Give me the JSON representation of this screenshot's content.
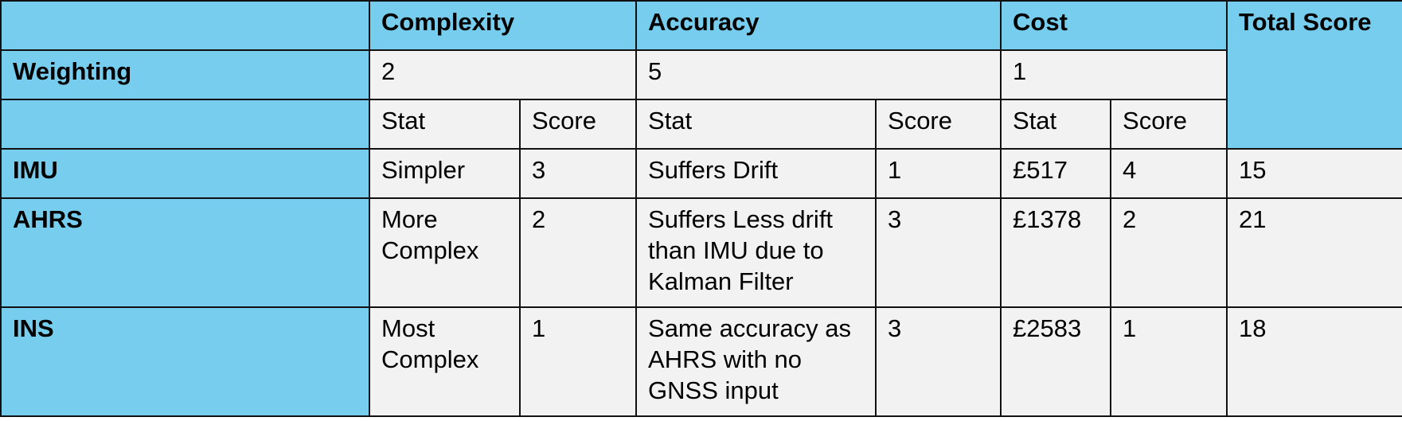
{
  "header": {
    "complexity": "Complexity",
    "accuracy": "Accuracy",
    "cost": "Cost",
    "total_score": "Total Score"
  },
  "weighting": {
    "label": "Weighting",
    "complexity": "2",
    "accuracy": "5",
    "cost": "1"
  },
  "subheaders": {
    "stat": "Stat",
    "score": "Score"
  },
  "rows": [
    {
      "name": "IMU",
      "complexity_stat": "Simpler",
      "complexity_score": "3",
      "accuracy_stat": "Suffers Drift",
      "accuracy_score": "1",
      "cost_stat": "£517",
      "cost_score": "4",
      "total": "15"
    },
    {
      "name": "AHRS",
      "complexity_stat": "More Complex",
      "complexity_score": "2",
      "accuracy_stat": "Suffers Less drift than IMU due to Kalman Filter",
      "accuracy_score": "3",
      "cost_stat": "£1378",
      "cost_score": "2",
      "total": "21"
    },
    {
      "name": "INS",
      "complexity_stat": "Most Complex",
      "complexity_score": "1",
      "accuracy_stat": "Same accuracy as AHRS with no GNSS input",
      "accuracy_score": "3",
      "cost_stat": "£2583",
      "cost_score": "1",
      "total": "18"
    }
  ],
  "colors": {
    "header_fill": "#76cdee",
    "cell_fill": "#f2f2f2",
    "border": "#111111"
  }
}
